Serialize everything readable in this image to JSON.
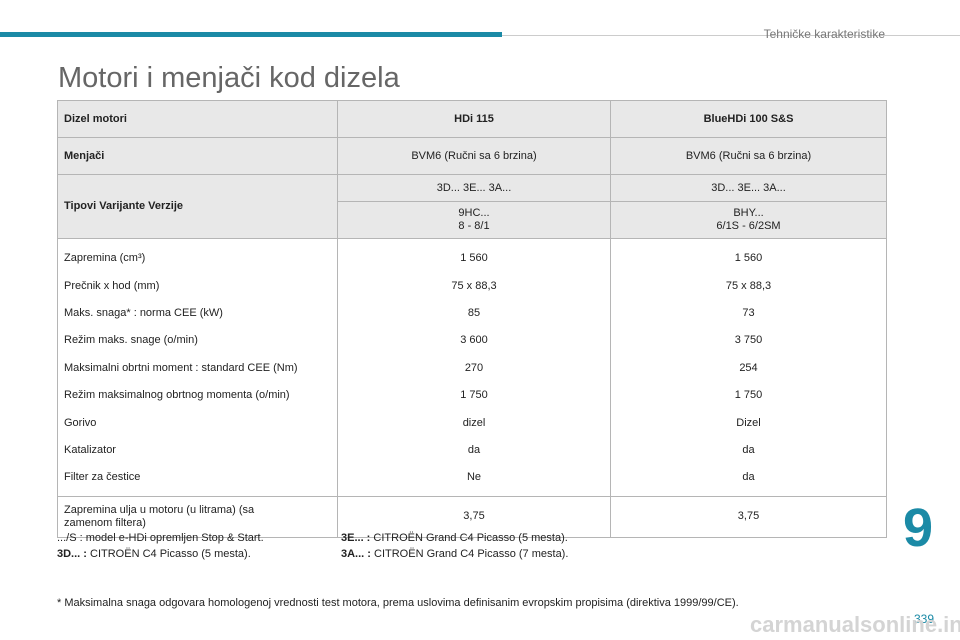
{
  "header": {
    "section": "Tehničke karakteristike",
    "title": "Motori i menjači kod dizela",
    "chapter": "9",
    "page": "339"
  },
  "table": {
    "header": [
      "Dizel motori",
      "HDi 115",
      "BlueHDi 100 S&S"
    ],
    "gearbox": [
      "Menjači",
      "BVM6 (Ručni sa 6 brzina)",
      "BVM6 (Ručni sa 6 brzina)"
    ],
    "types": {
      "label": "Tipovi Varijante Verzije",
      "variants": [
        "3D... 3E... 3A...",
        "3D... 3E... 3A..."
      ],
      "codes": [
        [
          "9HC...",
          "8 - 8/1"
        ],
        [
          "BHY...",
          "6/1S - 6/2SM"
        ]
      ]
    },
    "rows": [
      [
        "Zapremina (cm³)",
        "1 560",
        "1 560"
      ],
      [
        "Prečnik x hod (mm)",
        "75 x 88,3",
        "75 x 88,3"
      ],
      [
        "Maks. snaga* : norma CEE (kW)",
        "85",
        "73"
      ],
      [
        "Režim maks. snage (o/min)",
        "3 600",
        "3 750"
      ],
      [
        "Maksimalni obrtni moment : standard CEE (Nm)",
        "270",
        "254"
      ],
      [
        "Režim maksimalnog obrtnog momenta (o/min)",
        "1 750",
        "1 750"
      ],
      [
        "Gorivo",
        "dizel",
        "Dizel"
      ],
      [
        "Katalizator",
        "da",
        "da"
      ],
      [
        "Filter za čestice",
        "Ne",
        "da"
      ]
    ],
    "last": [
      "Zapremina ulja u motoru (u litrama) (sa zamenom filtera)",
      "3,75",
      "3,75"
    ]
  },
  "notes": {
    "stop_start": ".../S : model e-HDi opremljen Stop & Start.",
    "items": [
      {
        "key": "3D... :",
        "text": "CITROËN C4 Picasso (5 mesta)."
      },
      {
        "key": "3E... :",
        "text": "CITROËN Grand C4 Picasso (5 mesta)."
      },
      {
        "key": "3A... :",
        "text": "CITROËN Grand C4 Picasso (7 mesta)."
      }
    ],
    "footnote": "* Maksimalna snaga odgovara homologenoj vrednosti test motora, prema uslovima definisanim evropskim propisima (direktiva 1999/99/CE)."
  },
  "watermark": "carmanualsonline.info"
}
